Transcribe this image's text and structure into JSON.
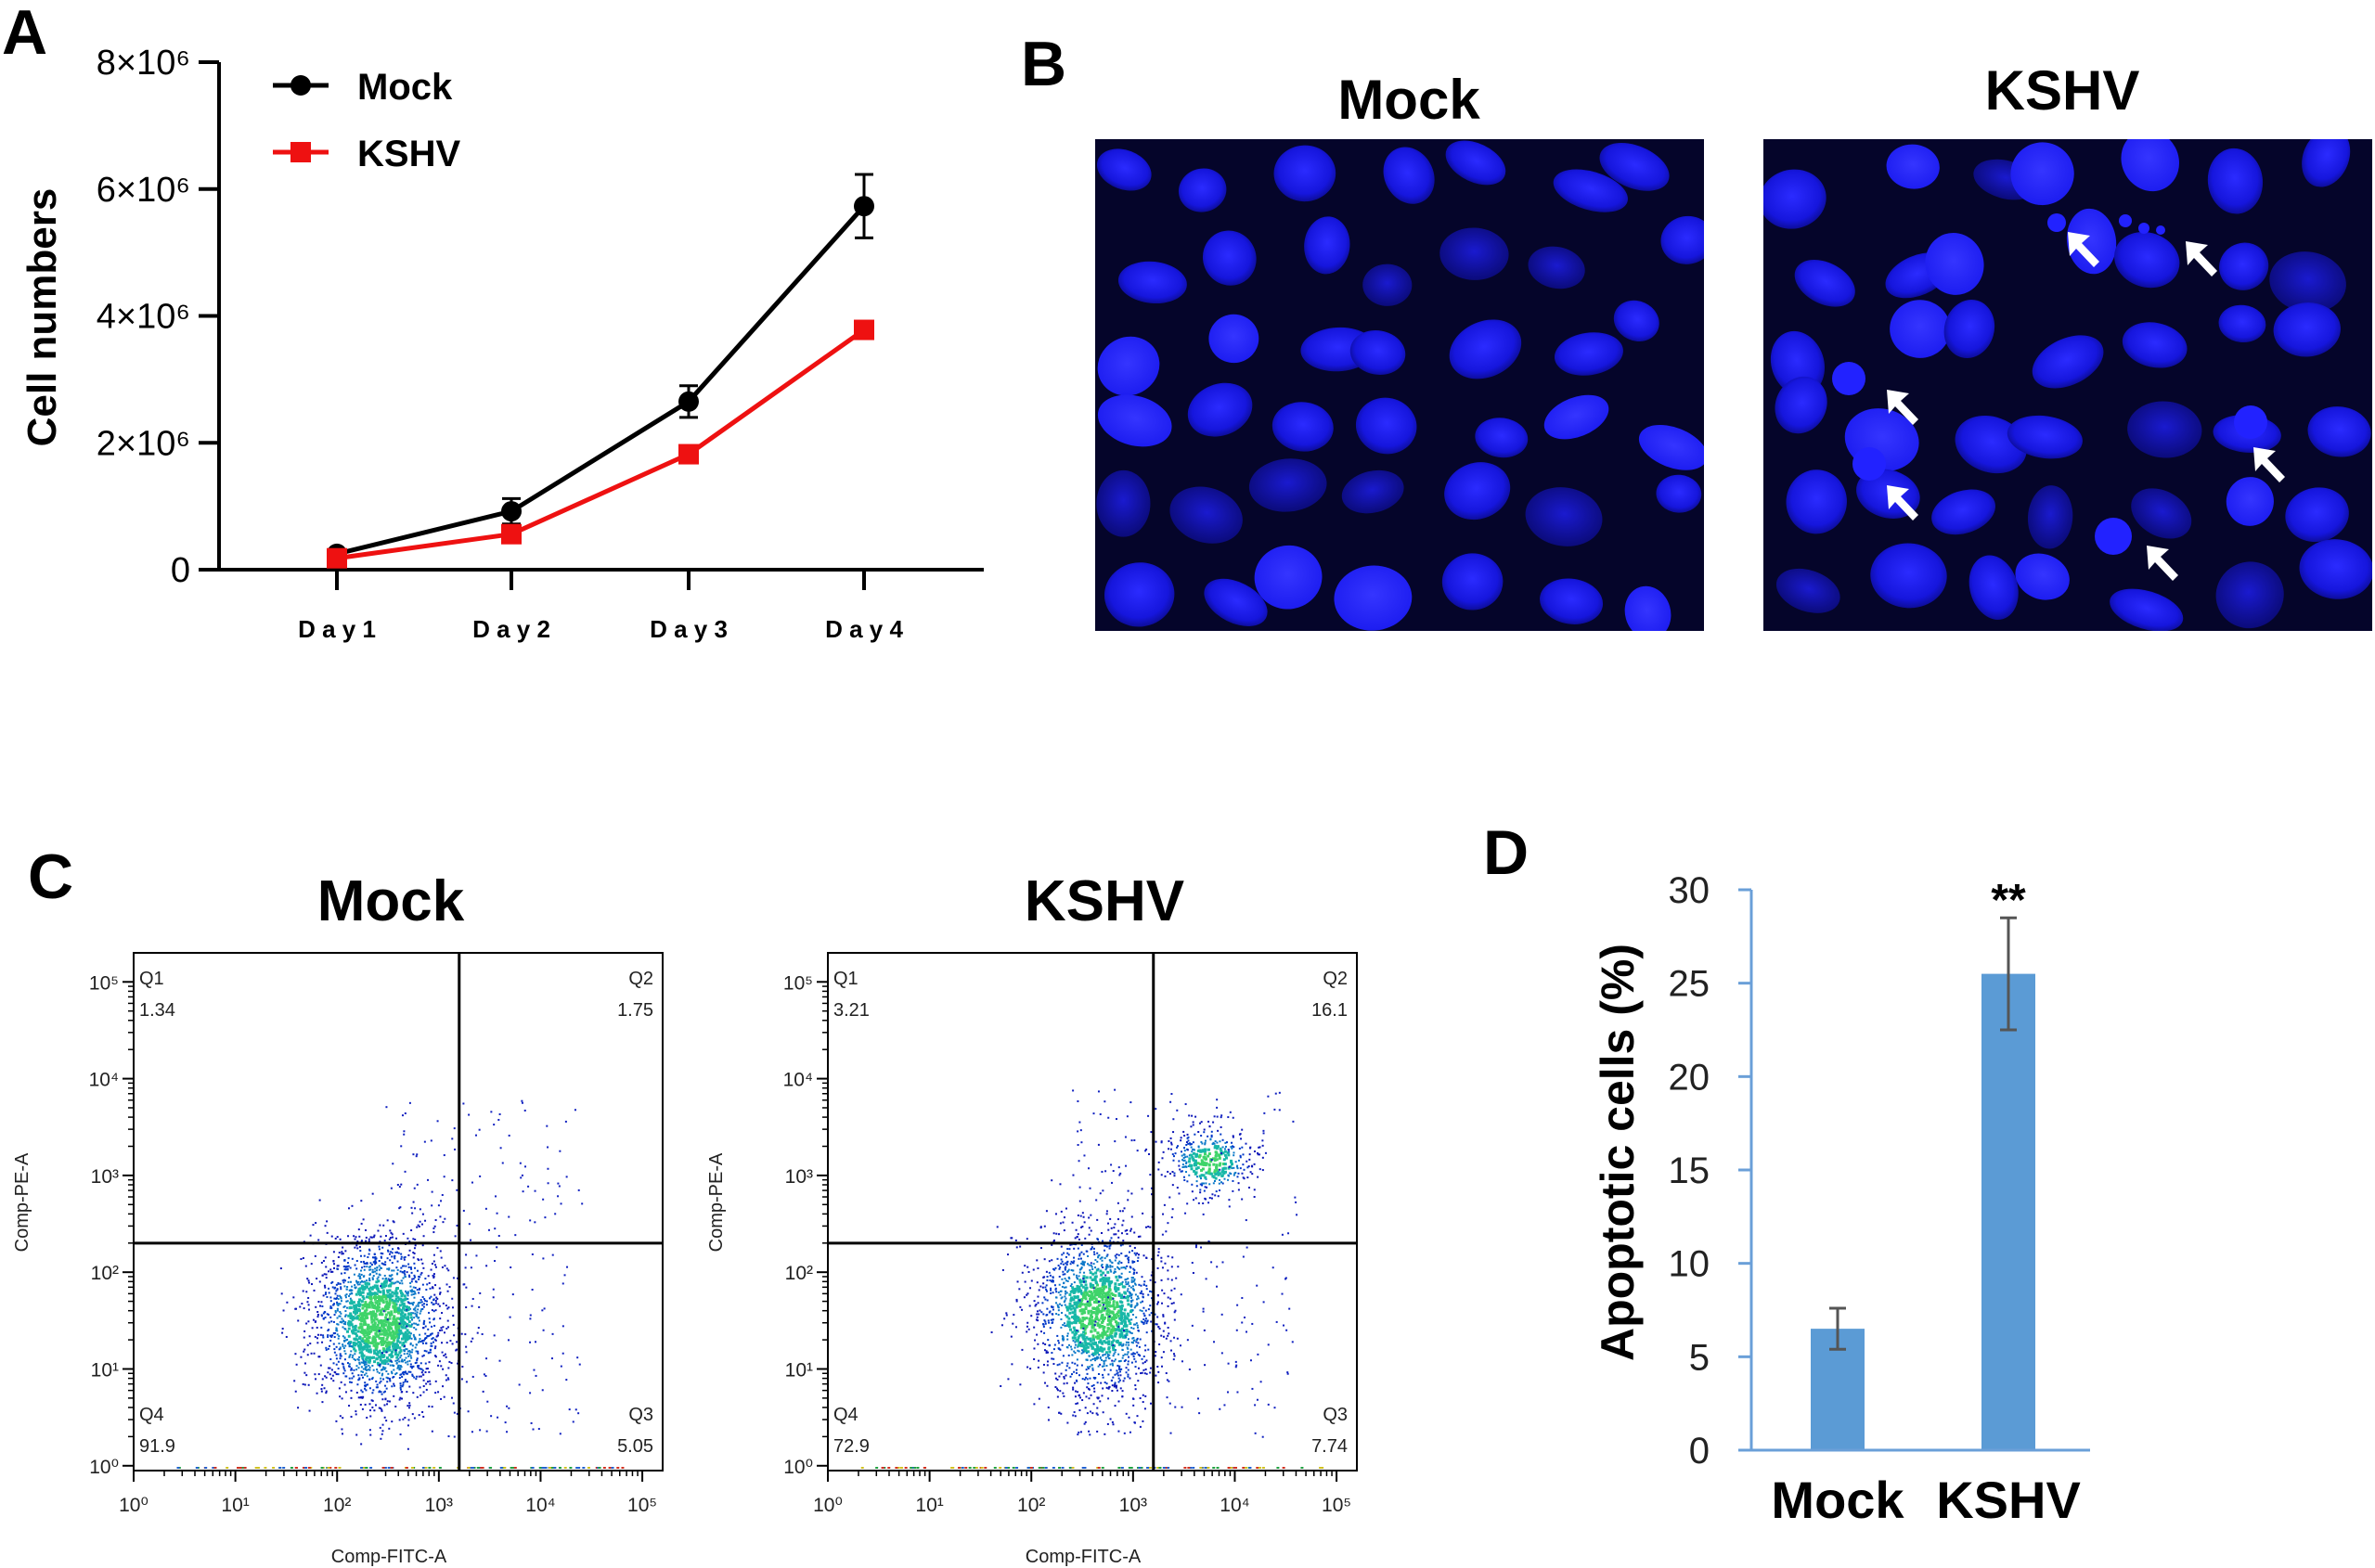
{
  "panels": {
    "a_label": "A",
    "b_label": "B",
    "c_label": "C",
    "d_label": "D"
  },
  "chart_data": [
    {
      "panel": "A",
      "type": "line",
      "title": "",
      "ylabel": "Cell numbers",
      "xlabel": "",
      "categories": [
        "D a y 1",
        "D a y 2",
        "D a y 3",
        "D a y 4"
      ],
      "y_ticks": [
        {
          "value": 0,
          "label": "0"
        },
        {
          "value": 2000000,
          "label": "2×10⁶"
        },
        {
          "value": 4000000,
          "label": "4×10⁶"
        },
        {
          "value": 6000000,
          "label": "6×10⁶"
        },
        {
          "value": 8000000,
          "label": "8×10⁶"
        }
      ],
      "ylim": [
        0,
        8000000
      ],
      "series": [
        {
          "name": "Mock",
          "color": "#000000",
          "marker": "circle",
          "values": [
            250000,
            920000,
            2650000,
            5730000
          ],
          "errors": [
            60000,
            200000,
            250000,
            500000
          ]
        },
        {
          "name": "KSHV",
          "color": "#ee1111",
          "marker": "square",
          "values": [
            180000,
            560000,
            1820000,
            3780000
          ],
          "errors": [
            30000,
            120000,
            80000,
            60000
          ]
        }
      ],
      "legend_position": "top-left"
    },
    {
      "panel": "B",
      "type": "image",
      "images": [
        {
          "title": "Mock",
          "color": "#1a1ae6"
        },
        {
          "title": "KSHV",
          "color": "#1a1ae6"
        }
      ]
    },
    {
      "panel": "C",
      "type": "scatter",
      "xlabel": "Comp-FITC-A",
      "ylabel": "Comp-PE-A",
      "x_ticks": [
        "10⁰",
        "10¹",
        "10²",
        "10³",
        "10⁴",
        "10⁵"
      ],
      "y_ticks": [
        "10⁰",
        "10¹",
        "10²",
        "10³",
        "10⁴",
        "10⁵"
      ],
      "xlim_log10": [
        0,
        5.2
      ],
      "ylim_log10": [
        -0.05,
        5.3
      ],
      "gate_log10": {
        "x": 3.2,
        "y": 2.3
      },
      "plots": [
        {
          "title": "Mock",
          "quadrants": {
            "Q1": {
              "label": "Q1",
              "value": "1.34"
            },
            "Q2": {
              "label": "Q2",
              "value": "1.75"
            },
            "Q3": {
              "label": "Q3",
              "value": "5.05"
            },
            "Q4": {
              "label": "Q4",
              "value": "91.9"
            }
          },
          "clusters": [
            {
              "cx": 2.4,
              "cy": 1.5,
              "sx": 0.33,
              "sy": 0.45,
              "n": 2000
            }
          ],
          "scatter": {
            "x": [
              2.4,
              4.4
            ],
            "y": [
              0.3,
              3.8
            ],
            "n": 220
          }
        },
        {
          "title": "KSHV",
          "quadrants": {
            "Q1": {
              "label": "Q1",
              "value": "3.21"
            },
            "Q2": {
              "label": "Q2",
              "value": "16.1"
            },
            "Q3": {
              "label": "Q3",
              "value": "7.74"
            },
            "Q4": {
              "label": "Q4",
              "value": "72.9"
            }
          },
          "clusters": [
            {
              "cx": 2.65,
              "cy": 1.6,
              "sx": 0.33,
              "sy": 0.45,
              "n": 1650
            },
            {
              "cx": 3.75,
              "cy": 3.15,
              "sx": 0.22,
              "sy": 0.18,
              "n": 360
            }
          ],
          "scatter": {
            "x": [
              2.4,
              4.6
            ],
            "y": [
              0.3,
              3.9
            ],
            "n": 260
          }
        }
      ]
    },
    {
      "panel": "D",
      "type": "bar",
      "ylabel": "Apoptotic cells (%)",
      "categories": [
        "Mock",
        "KSHV"
      ],
      "values": [
        6.5,
        25.5
      ],
      "errors": [
        1.1,
        3.0
      ],
      "annotations": [
        {
          "category": "KSHV",
          "text": "**"
        }
      ],
      "ylim": [
        0,
        30
      ],
      "y_ticks": [
        "0",
        "5",
        "10",
        "15",
        "20",
        "25",
        "30"
      ],
      "bar_color": "#5b9bd5",
      "axis_color": "#6a9fd8"
    }
  ]
}
